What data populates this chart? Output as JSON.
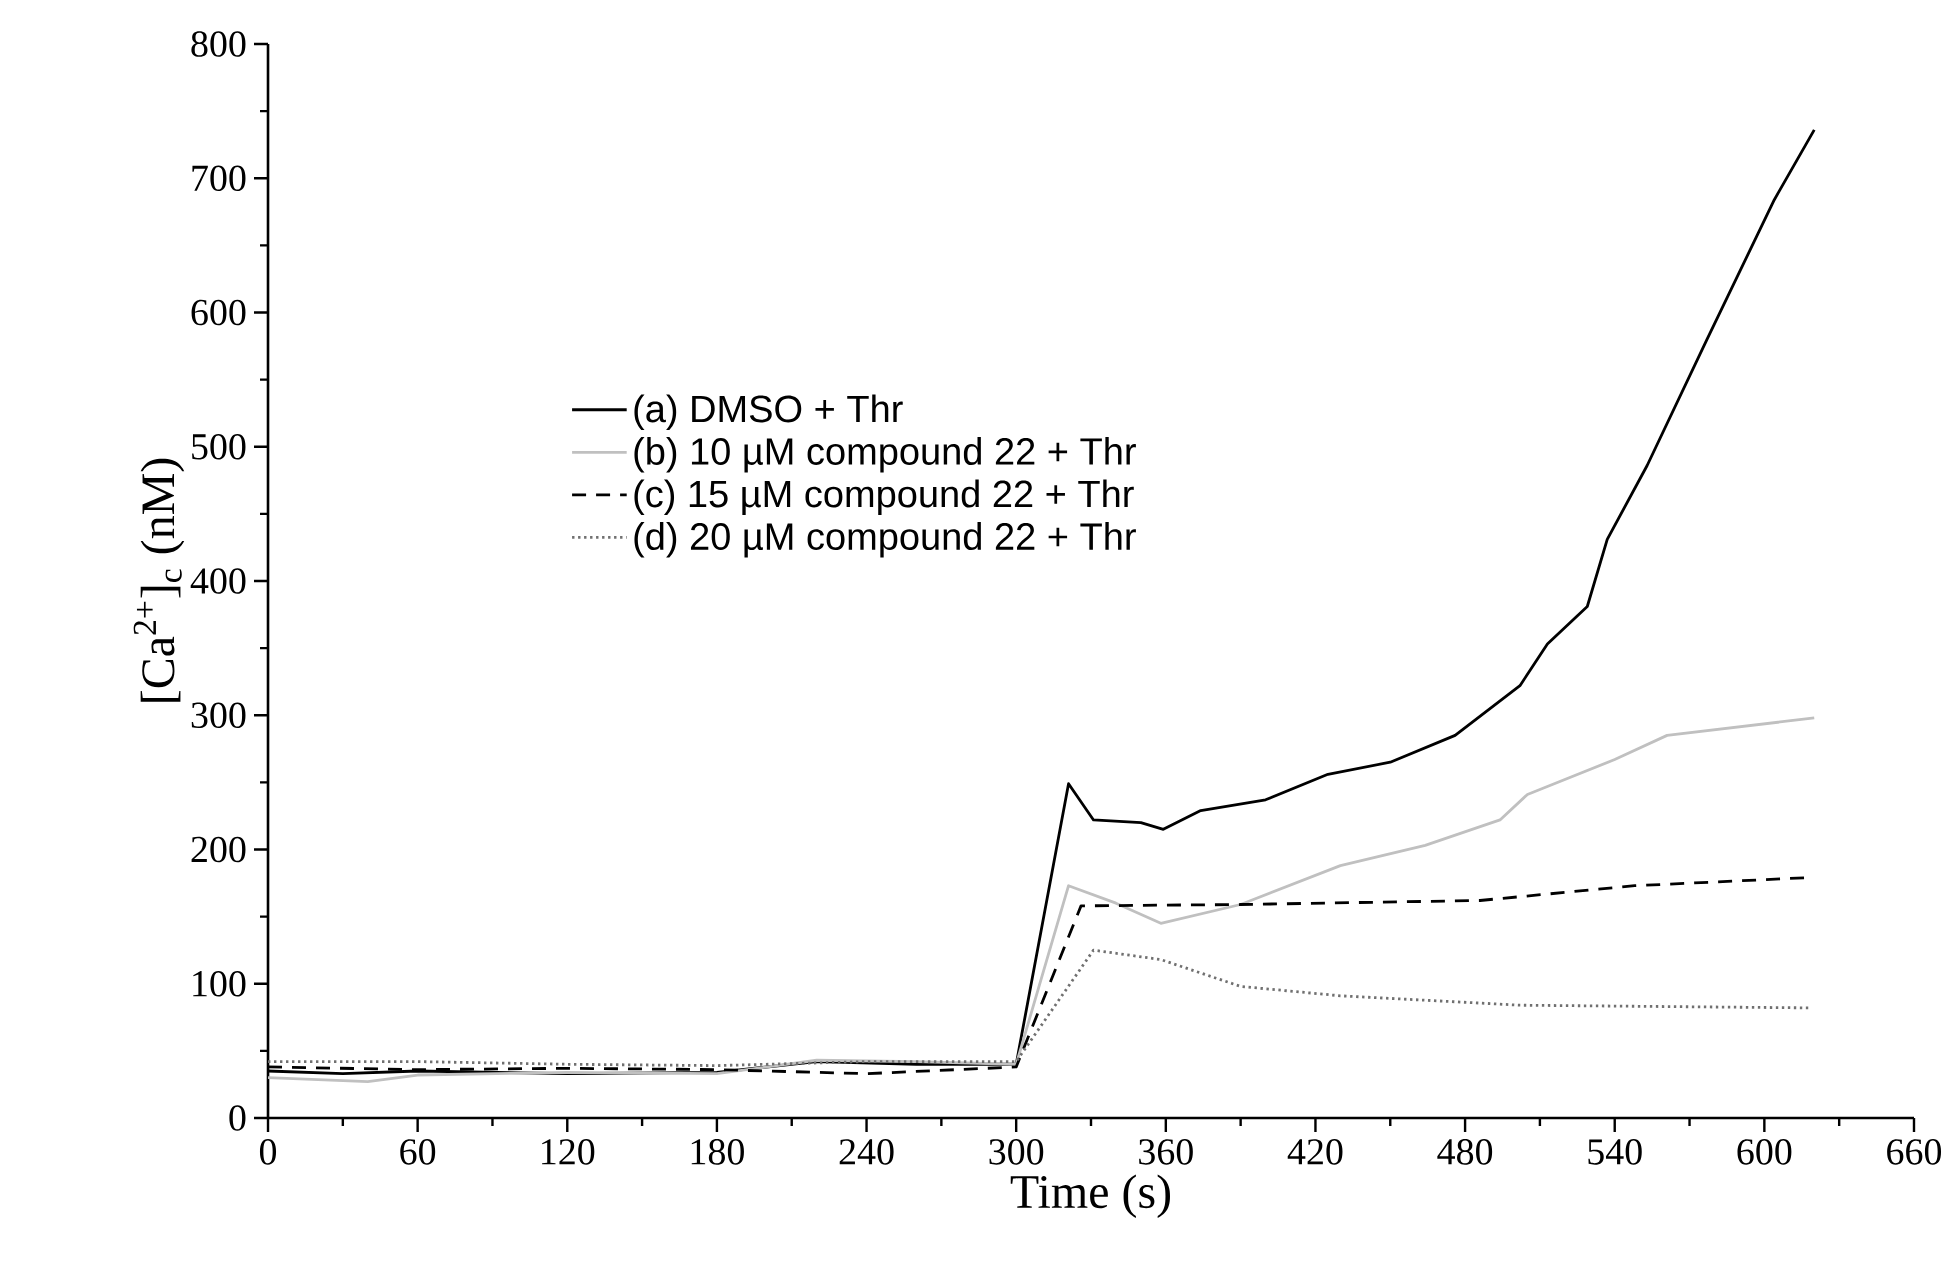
{
  "chart_data": {
    "type": "line",
    "xlabel": "Time (s)",
    "ylabel": "[Ca$^{2+}$]$_{c}$ (nM)",
    "xlim": [
      0,
      660
    ],
    "xticks": [
      0,
      60,
      120,
      180,
      240,
      300,
      360,
      420,
      480,
      540,
      600,
      660
    ],
    "ylim": [
      0,
      800
    ],
    "yticks": [
      0,
      100,
      200,
      300,
      400,
      500,
      600,
      700,
      800
    ],
    "legend": "left",
    "series": [
      {
        "name": "(a) DMSO + Thr",
        "color": "#000000",
        "line_style": "solid",
        "x": [
          0,
          30,
          60,
          120,
          180,
          220,
          260,
          300,
          321,
          331,
          350,
          359,
          374,
          400,
          425,
          450,
          476,
          502,
          513,
          529,
          537,
          553,
          577,
          604,
          620
        ],
        "values": [
          35,
          33,
          35,
          33,
          34,
          42,
          40,
          40,
          249,
          222,
          220,
          215,
          229,
          237,
          256,
          265,
          285,
          322,
          353,
          381,
          431,
          486,
          580,
          684,
          736
        ]
      },
      {
        "name": "(b) 10 µM compound 22 + Thr",
        "color": "#c0c0c0",
        "line_style": "solid",
        "x": [
          0,
          40,
          60,
          120,
          180,
          220,
          260,
          300,
          321,
          340,
          358,
          390,
          430,
          464,
          494,
          505,
          540,
          561,
          620
        ],
        "values": [
          30,
          27,
          32,
          34,
          33,
          43,
          42,
          40,
          173,
          160,
          145,
          159,
          188,
          203,
          222,
          241,
          267,
          285,
          298
        ]
      },
      {
        "name": "(c) 15 µM compound 22 + Thr",
        "color": "#000000",
        "line_style": "dashed",
        "x": [
          0,
          60,
          120,
          180,
          240,
          300,
          326,
          390,
          486,
          548,
          617
        ],
        "values": [
          38,
          36,
          37,
          36,
          33,
          38,
          158,
          159,
          162,
          173,
          179
        ]
      },
      {
        "name": "(d) 20 µM compound 22 + Thr",
        "color": "#707070",
        "line_style": "dotted",
        "x": [
          0,
          60,
          120,
          180,
          240,
          300,
          331,
          358,
          390,
          430,
          502,
          618
        ],
        "values": [
          42,
          42,
          40,
          39,
          42,
          42,
          125,
          118,
          98,
          91,
          84,
          82
        ]
      }
    ]
  }
}
